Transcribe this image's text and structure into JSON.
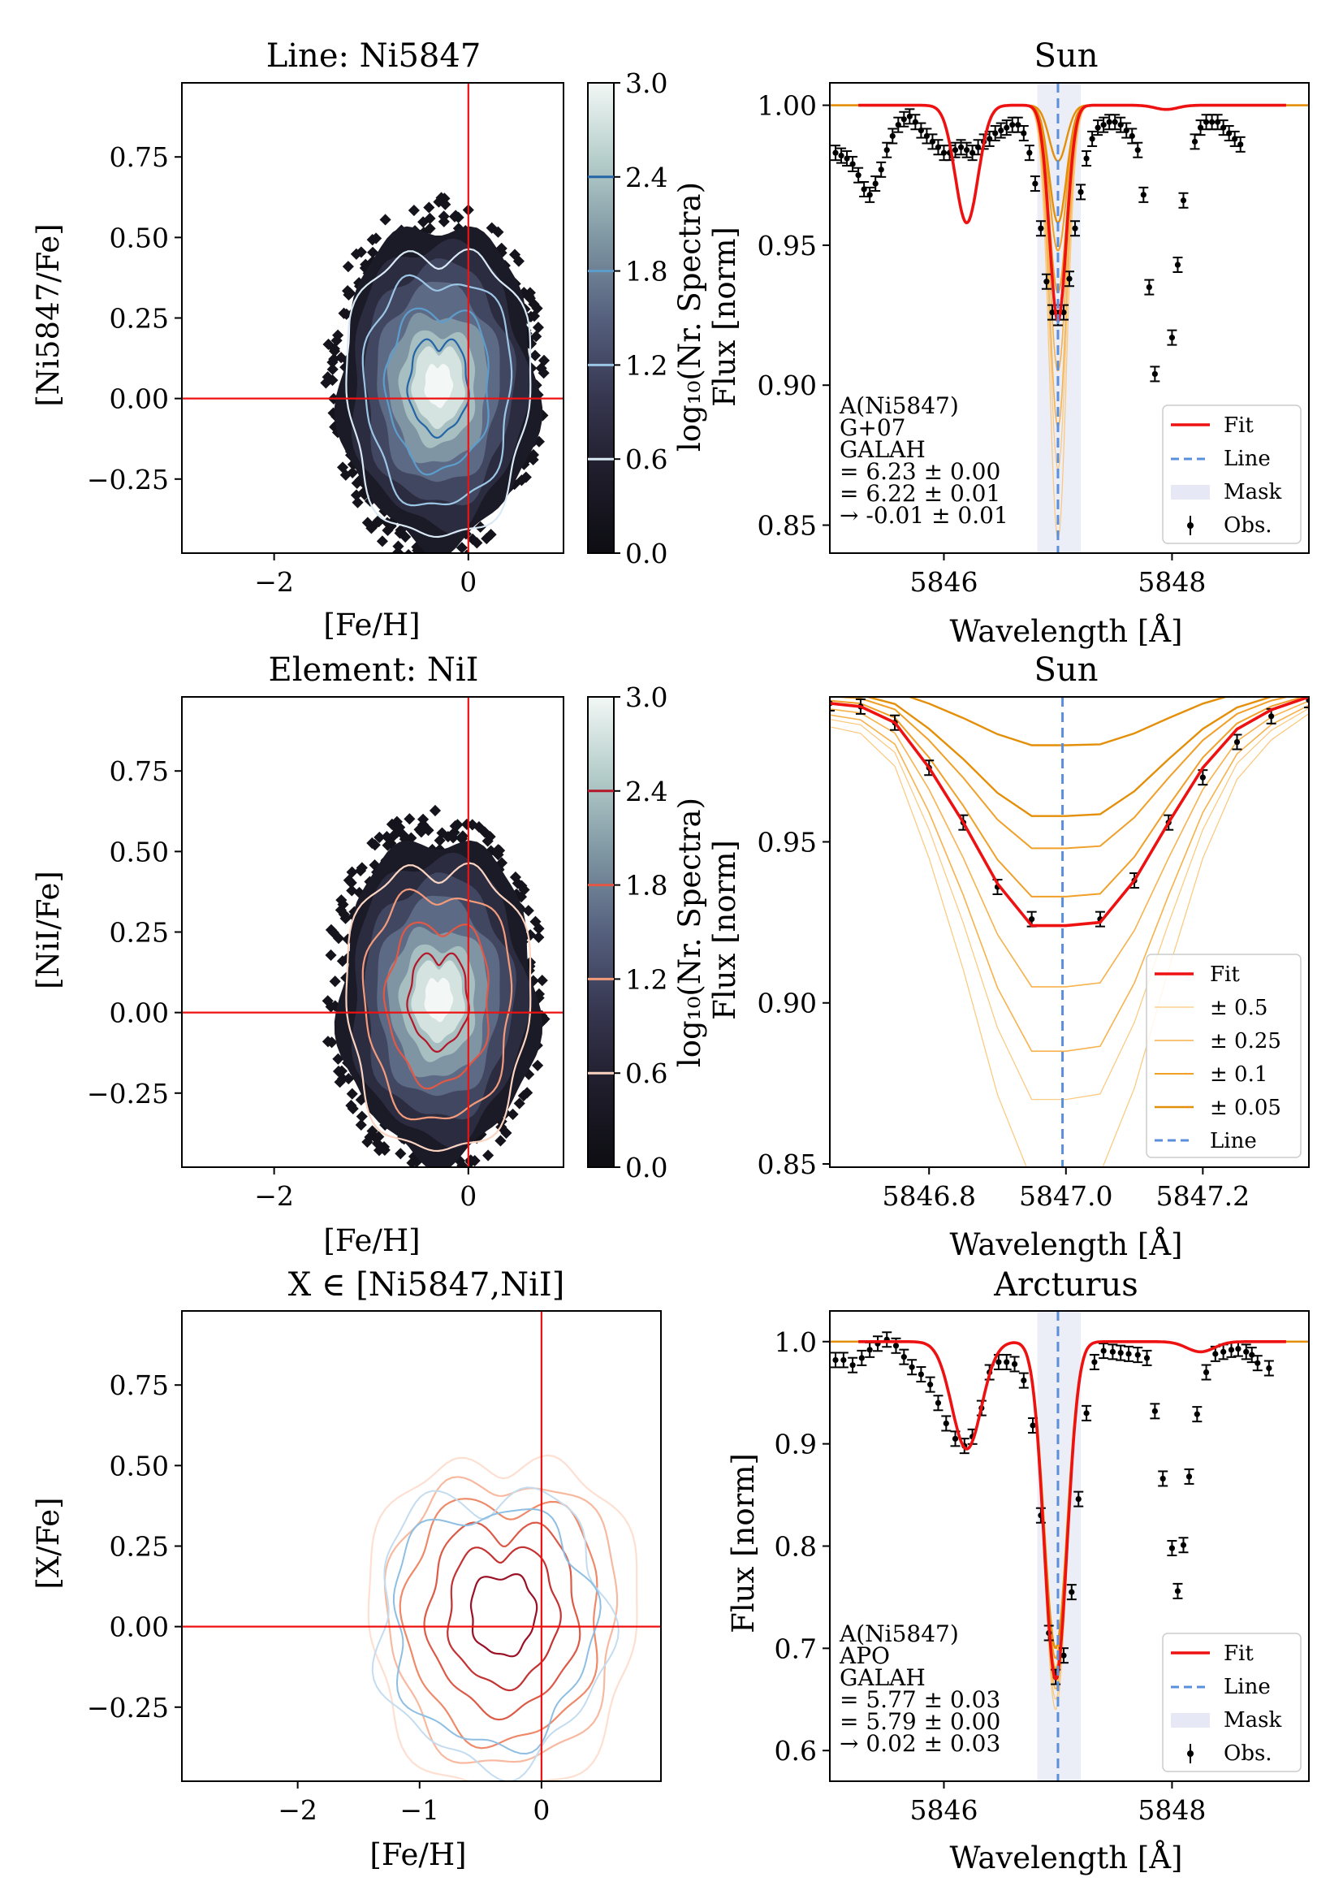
{
  "colors": {
    "fit": "#ee1111",
    "line_marker": "#5b8fdc",
    "mask": "#e6e8f5",
    "obs": "#000000",
    "crosshair": "#ee1111",
    "band_05": "#fbc77a",
    "band_025": "#f6b24c",
    "band_01": "#f0a028",
    "band_005": "#e48f0a"
  },
  "chart_data": [
    {
      "id": "line_hist",
      "type": "heatmap",
      "title": "Line: Ni5847",
      "xlabel": "[Fe/H]",
      "ylabel": "[Ni5847/Fe]",
      "xlim": [
        -2.95,
        0.98
      ],
      "ylim": [
        -0.48,
        0.98
      ],
      "xticks": [
        {
          "v": -2,
          "t": "−2"
        },
        {
          "v": 0,
          "t": "0"
        }
      ],
      "yticks": [
        {
          "v": 0.75,
          "t": "0.75"
        },
        {
          "v": 0.5,
          "t": "0.50"
        },
        {
          "v": 0.25,
          "t": "0.25"
        },
        {
          "v": 0.0,
          "t": "0.00"
        },
        {
          "v": -0.25,
          "t": "−0.25"
        }
      ],
      "crosshair": {
        "x": 0,
        "y": 0
      },
      "density_center": {
        "x": -0.35,
        "y": 0.03
      },
      "colorbar": {
        "label": "log₁₀(Nr. Spectra)",
        "range": [
          0.0,
          3.0
        ],
        "ticks": [
          "3.0",
          "2.4",
          "1.8",
          "1.2",
          "0.6",
          "0.0"
        ],
        "line_levels": [
          0.6,
          1.2,
          1.8,
          2.4
        ],
        "line_cmap": "blues"
      }
    },
    {
      "id": "element_hist",
      "type": "heatmap",
      "title": "Element: NiI",
      "xlabel": "[Fe/H]",
      "ylabel": "[NiI/Fe]",
      "xlim": [
        -2.95,
        0.98
      ],
      "ylim": [
        -0.48,
        0.98
      ],
      "xticks": [
        {
          "v": -2,
          "t": "−2"
        },
        {
          "v": 0,
          "t": "0"
        }
      ],
      "yticks": [
        {
          "v": 0.75,
          "t": "0.75"
        },
        {
          "v": 0.5,
          "t": "0.50"
        },
        {
          "v": 0.25,
          "t": "0.25"
        },
        {
          "v": 0.0,
          "t": "0.00"
        },
        {
          "v": -0.25,
          "t": "−0.25"
        }
      ],
      "crosshair": {
        "x": 0,
        "y": 0
      },
      "density_center": {
        "x": -0.35,
        "y": 0.03
      },
      "colorbar": {
        "label": "log₁₀(Nr. Spectra)",
        "range": [
          0.0,
          3.0
        ],
        "ticks": [
          "3.0",
          "2.4",
          "1.8",
          "1.2",
          "0.6",
          "0.0"
        ],
        "line_levels": [
          0.6,
          1.2,
          1.8,
          2.4
        ],
        "line_cmap": "reds"
      }
    },
    {
      "id": "sun_spectrum",
      "type": "line",
      "title": "Sun",
      "xlabel": "Wavelength [Å]",
      "ylabel": "Flux [norm]",
      "xlim": [
        5845.0,
        5849.2
      ],
      "ylim": [
        0.84,
        1.008
      ],
      "xticks": [
        {
          "v": 5846,
          "t": "5846"
        },
        {
          "v": 5848,
          "t": "5848"
        }
      ],
      "yticks": [
        {
          "v": 1.0,
          "t": "1.00"
        },
        {
          "v": 0.95,
          "t": "0.95"
        },
        {
          "v": 0.9,
          "t": "0.90"
        },
        {
          "v": 0.85,
          "t": "0.85"
        }
      ],
      "line_center": 5847.0,
      "mask": [
        5846.82,
        5847.2
      ],
      "fit_model": [
        {
          "center": 5846.2,
          "depth": 0.042,
          "sigma": 0.1
        },
        {
          "center": 5847.0,
          "depth": 0.077,
          "sigma": 0.075
        },
        {
          "center": 5847.95,
          "depth": 0.0015,
          "sigma": 0.1
        }
      ],
      "band_depths": [
        0.155,
        0.13,
        0.115,
        0.095,
        0.067,
        0.052,
        0.042,
        0.02
      ],
      "obs": [
        [
          5845.05,
          0.983
        ],
        [
          5845.1,
          0.982
        ],
        [
          5845.15,
          0.981
        ],
        [
          5845.2,
          0.979
        ],
        [
          5845.25,
          0.975
        ],
        [
          5845.3,
          0.97
        ],
        [
          5845.35,
          0.968
        ],
        [
          5845.4,
          0.972
        ],
        [
          5845.45,
          0.977
        ],
        [
          5845.5,
          0.984
        ],
        [
          5845.55,
          0.989
        ],
        [
          5845.6,
          0.993
        ],
        [
          5845.65,
          0.995
        ],
        [
          5845.7,
          0.996
        ],
        [
          5845.75,
          0.994
        ],
        [
          5845.8,
          0.991
        ],
        [
          5845.85,
          0.989
        ],
        [
          5845.9,
          0.987
        ],
        [
          5845.95,
          0.985
        ],
        [
          5846.0,
          0.983
        ],
        [
          5846.05,
          0.983
        ],
        [
          5846.1,
          0.984
        ],
        [
          5846.15,
          0.985
        ],
        [
          5846.2,
          0.984
        ],
        [
          5846.25,
          0.983
        ],
        [
          5846.3,
          0.985
        ],
        [
          5846.35,
          0.987
        ],
        [
          5846.4,
          0.988
        ],
        [
          5846.45,
          0.99
        ],
        [
          5846.5,
          0.991
        ],
        [
          5846.55,
          0.992
        ],
        [
          5846.6,
          0.993
        ],
        [
          5846.65,
          0.993
        ],
        [
          5846.7,
          0.99
        ],
        [
          5846.75,
          0.983
        ],
        [
          5846.8,
          0.972
        ],
        [
          5846.85,
          0.956
        ],
        [
          5846.9,
          0.937
        ],
        [
          5846.95,
          0.926
        ],
        [
          5847.0,
          0.924
        ],
        [
          5847.05,
          0.926
        ],
        [
          5847.1,
          0.938
        ],
        [
          5847.15,
          0.956
        ],
        [
          5847.2,
          0.969
        ],
        [
          5847.25,
          0.981
        ],
        [
          5847.3,
          0.988
        ],
        [
          5847.35,
          0.992
        ],
        [
          5847.4,
          0.993
        ],
        [
          5847.45,
          0.994
        ],
        [
          5847.5,
          0.994
        ],
        [
          5847.55,
          0.993
        ],
        [
          5847.6,
          0.991
        ],
        [
          5847.65,
          0.989
        ],
        [
          5847.7,
          0.984
        ],
        [
          5847.75,
          0.968
        ],
        [
          5847.8,
          0.935
        ],
        [
          5847.85,
          0.904
        ],
        [
          5848.0,
          0.917
        ],
        [
          5848.05,
          0.943
        ],
        [
          5848.1,
          0.966
        ],
        [
          5848.2,
          0.987
        ],
        [
          5848.25,
          0.992
        ],
        [
          5848.3,
          0.994
        ],
        [
          5848.35,
          0.994
        ],
        [
          5848.4,
          0.994
        ],
        [
          5848.45,
          0.992
        ],
        [
          5848.5,
          0.99
        ],
        [
          5848.55,
          0.988
        ],
        [
          5848.6,
          0.986
        ]
      ],
      "annotation": [
        "A(Ni5847)",
        "G+07",
        "GALAH",
        "= 6.23 ± 0.00",
        "= 6.22 ± 0.01",
        "→ -0.01 ± 0.01"
      ],
      "legend": [
        "Fit",
        "Line",
        "Mask",
        "Obs."
      ]
    },
    {
      "id": "sun_zoom",
      "type": "line",
      "title": "Sun",
      "xlabel": "Wavelength [Å]",
      "ylabel": "Flux [norm]",
      "xlim": [
        5846.655,
        5847.355
      ],
      "ylim": [
        0.849,
        0.995
      ],
      "xticks": [
        {
          "v": 5846.8,
          "t": "5846.8"
        },
        {
          "v": 5847.0,
          "t": "5847.0"
        },
        {
          "v": 5847.2,
          "t": "5847.2"
        }
      ],
      "yticks": [
        {
          "v": 0.95,
          "t": "0.95"
        },
        {
          "v": 0.9,
          "t": "0.90"
        },
        {
          "v": 0.85,
          "t": "0.85"
        }
      ],
      "line_center": 5846.995,
      "fit_points": [
        [
          5846.655,
          0.993
        ],
        [
          5846.7,
          0.992
        ],
        [
          5846.75,
          0.987
        ],
        [
          5846.8,
          0.973
        ],
        [
          5846.85,
          0.956
        ],
        [
          5846.9,
          0.937
        ],
        [
          5846.95,
          0.924
        ],
        [
          5847.0,
          0.924
        ],
        [
          5847.05,
          0.925
        ],
        [
          5847.1,
          0.938
        ],
        [
          5847.15,
          0.956
        ],
        [
          5847.2,
          0.973
        ],
        [
          5847.25,
          0.985
        ],
        [
          5847.3,
          0.991
        ],
        [
          5847.355,
          0.995
        ]
      ],
      "band_depths": [
        0.155,
        0.13,
        0.115,
        0.095,
        0.067,
        0.052,
        0.042,
        0.02
      ],
      "obs": [
        [
          5846.655,
          0.993
        ],
        [
          5846.7,
          0.992
        ],
        [
          5846.75,
          0.987
        ],
        [
          5846.8,
          0.973
        ],
        [
          5846.85,
          0.956
        ],
        [
          5846.9,
          0.936
        ],
        [
          5846.95,
          0.926
        ],
        [
          5847.05,
          0.926
        ],
        [
          5847.1,
          0.938
        ],
        [
          5847.15,
          0.956
        ],
        [
          5847.2,
          0.97
        ],
        [
          5847.25,
          0.981
        ],
        [
          5847.3,
          0.989
        ],
        [
          5847.355,
          0.994
        ]
      ],
      "legend": [
        "Fit",
        "± 0.5",
        "± 0.25",
        "± 0.1",
        "± 0.05",
        "Line"
      ]
    },
    {
      "id": "combined_contours",
      "type": "heatmap",
      "title": "X ∈ [Ni5847,NiI]",
      "xlabel": "[Fe/H]",
      "ylabel": "[X/Fe]",
      "xlim": [
        -2.95,
        0.98
      ],
      "ylim": [
        -0.48,
        0.98
      ],
      "xticks": [
        {
          "v": -2,
          "t": "−2"
        },
        {
          "v": -1,
          "t": "−1"
        },
        {
          "v": 0,
          "t": "0"
        }
      ],
      "yticks": [
        {
          "v": 0.75,
          "t": "0.75"
        },
        {
          "v": 0.5,
          "t": "0.50"
        },
        {
          "v": 0.25,
          "t": "0.25"
        },
        {
          "v": 0.0,
          "t": "0.00"
        },
        {
          "v": -0.25,
          "t": "−0.25"
        }
      ],
      "crosshair": {
        "x": 0,
        "y": 0
      },
      "density_center": {
        "x": -0.35,
        "y": 0.03
      }
    },
    {
      "id": "arcturus_spectrum",
      "type": "line",
      "title": "Arcturus",
      "xlabel": "Wavelength [Å]",
      "ylabel": "Flux [norm]",
      "xlim": [
        5845.0,
        5849.2
      ],
      "ylim": [
        0.57,
        1.03
      ],
      "xticks": [
        {
          "v": 5846,
          "t": "5846"
        },
        {
          "v": 5848,
          "t": "5848"
        }
      ],
      "yticks": [
        {
          "v": 1.0,
          "t": "1.0"
        },
        {
          "v": 0.9,
          "t": "0.9"
        },
        {
          "v": 0.8,
          "t": "0.8"
        },
        {
          "v": 0.7,
          "t": "0.7"
        },
        {
          "v": 0.6,
          "t": "0.6"
        }
      ],
      "line_center": 5847.0,
      "mask": [
        5846.82,
        5847.2
      ],
      "fit_model": [
        {
          "center": 5846.2,
          "depth": 0.105,
          "sigma": 0.13
        },
        {
          "center": 5846.98,
          "depth": 0.33,
          "sigma": 0.1
        },
        {
          "center": 5848.25,
          "depth": 0.01,
          "sigma": 0.12
        }
      ],
      "band_depths": [
        0.36,
        0.35,
        0.34,
        0.33,
        0.32,
        0.31,
        0.3
      ],
      "obs": [
        [
          5845.05,
          0.982
        ],
        [
          5845.12,
          0.982
        ],
        [
          5845.2,
          0.977
        ],
        [
          5845.28,
          0.984
        ],
        [
          5845.35,
          0.992
        ],
        [
          5845.42,
          0.998
        ],
        [
          5845.5,
          1.002
        ],
        [
          5845.58,
          0.996
        ],
        [
          5845.65,
          0.985
        ],
        [
          5845.72,
          0.975
        ],
        [
          5845.8,
          0.968
        ],
        [
          5845.88,
          0.958
        ],
        [
          5845.95,
          0.94
        ],
        [
          5846.02,
          0.92
        ],
        [
          5846.1,
          0.905
        ],
        [
          5846.18,
          0.898
        ],
        [
          5846.25,
          0.907
        ],
        [
          5846.33,
          0.935
        ],
        [
          5846.4,
          0.97
        ],
        [
          5846.48,
          0.98
        ],
        [
          5846.55,
          0.98
        ],
        [
          5846.62,
          0.978
        ],
        [
          5846.7,
          0.962
        ],
        [
          5846.78,
          0.918
        ],
        [
          5846.85,
          0.83
        ],
        [
          5846.92,
          0.715
        ],
        [
          5846.98,
          0.672
        ],
        [
          5847.05,
          0.693
        ],
        [
          5847.12,
          0.755
        ],
        [
          5847.18,
          0.846
        ],
        [
          5847.25,
          0.93
        ],
        [
          5847.32,
          0.98
        ],
        [
          5847.4,
          0.991
        ],
        [
          5847.48,
          0.99
        ],
        [
          5847.55,
          0.989
        ],
        [
          5847.62,
          0.988
        ],
        [
          5847.7,
          0.987
        ],
        [
          5847.78,
          0.984
        ],
        [
          5847.85,
          0.932
        ],
        [
          5847.92,
          0.866
        ],
        [
          5848.0,
          0.798
        ],
        [
          5848.05,
          0.756
        ],
        [
          5848.1,
          0.801
        ],
        [
          5848.15,
          0.868
        ],
        [
          5848.22,
          0.929
        ],
        [
          5848.3,
          0.97
        ],
        [
          5848.38,
          0.988
        ],
        [
          5848.45,
          0.99
        ],
        [
          5848.52,
          0.992
        ],
        [
          5848.58,
          0.993
        ],
        [
          5848.65,
          0.99
        ],
        [
          5848.7,
          0.987
        ],
        [
          5848.75,
          0.979
        ],
        [
          5848.85,
          0.974
        ]
      ],
      "annotation": [
        "A(Ni5847)",
        "APO",
        "GALAH",
        "= 5.77 ± 0.03",
        "= 5.79 ± 0.00",
        "→ 0.02 ± 0.03"
      ],
      "legend": [
        "Fit",
        "Line",
        "Mask",
        "Obs."
      ]
    }
  ]
}
